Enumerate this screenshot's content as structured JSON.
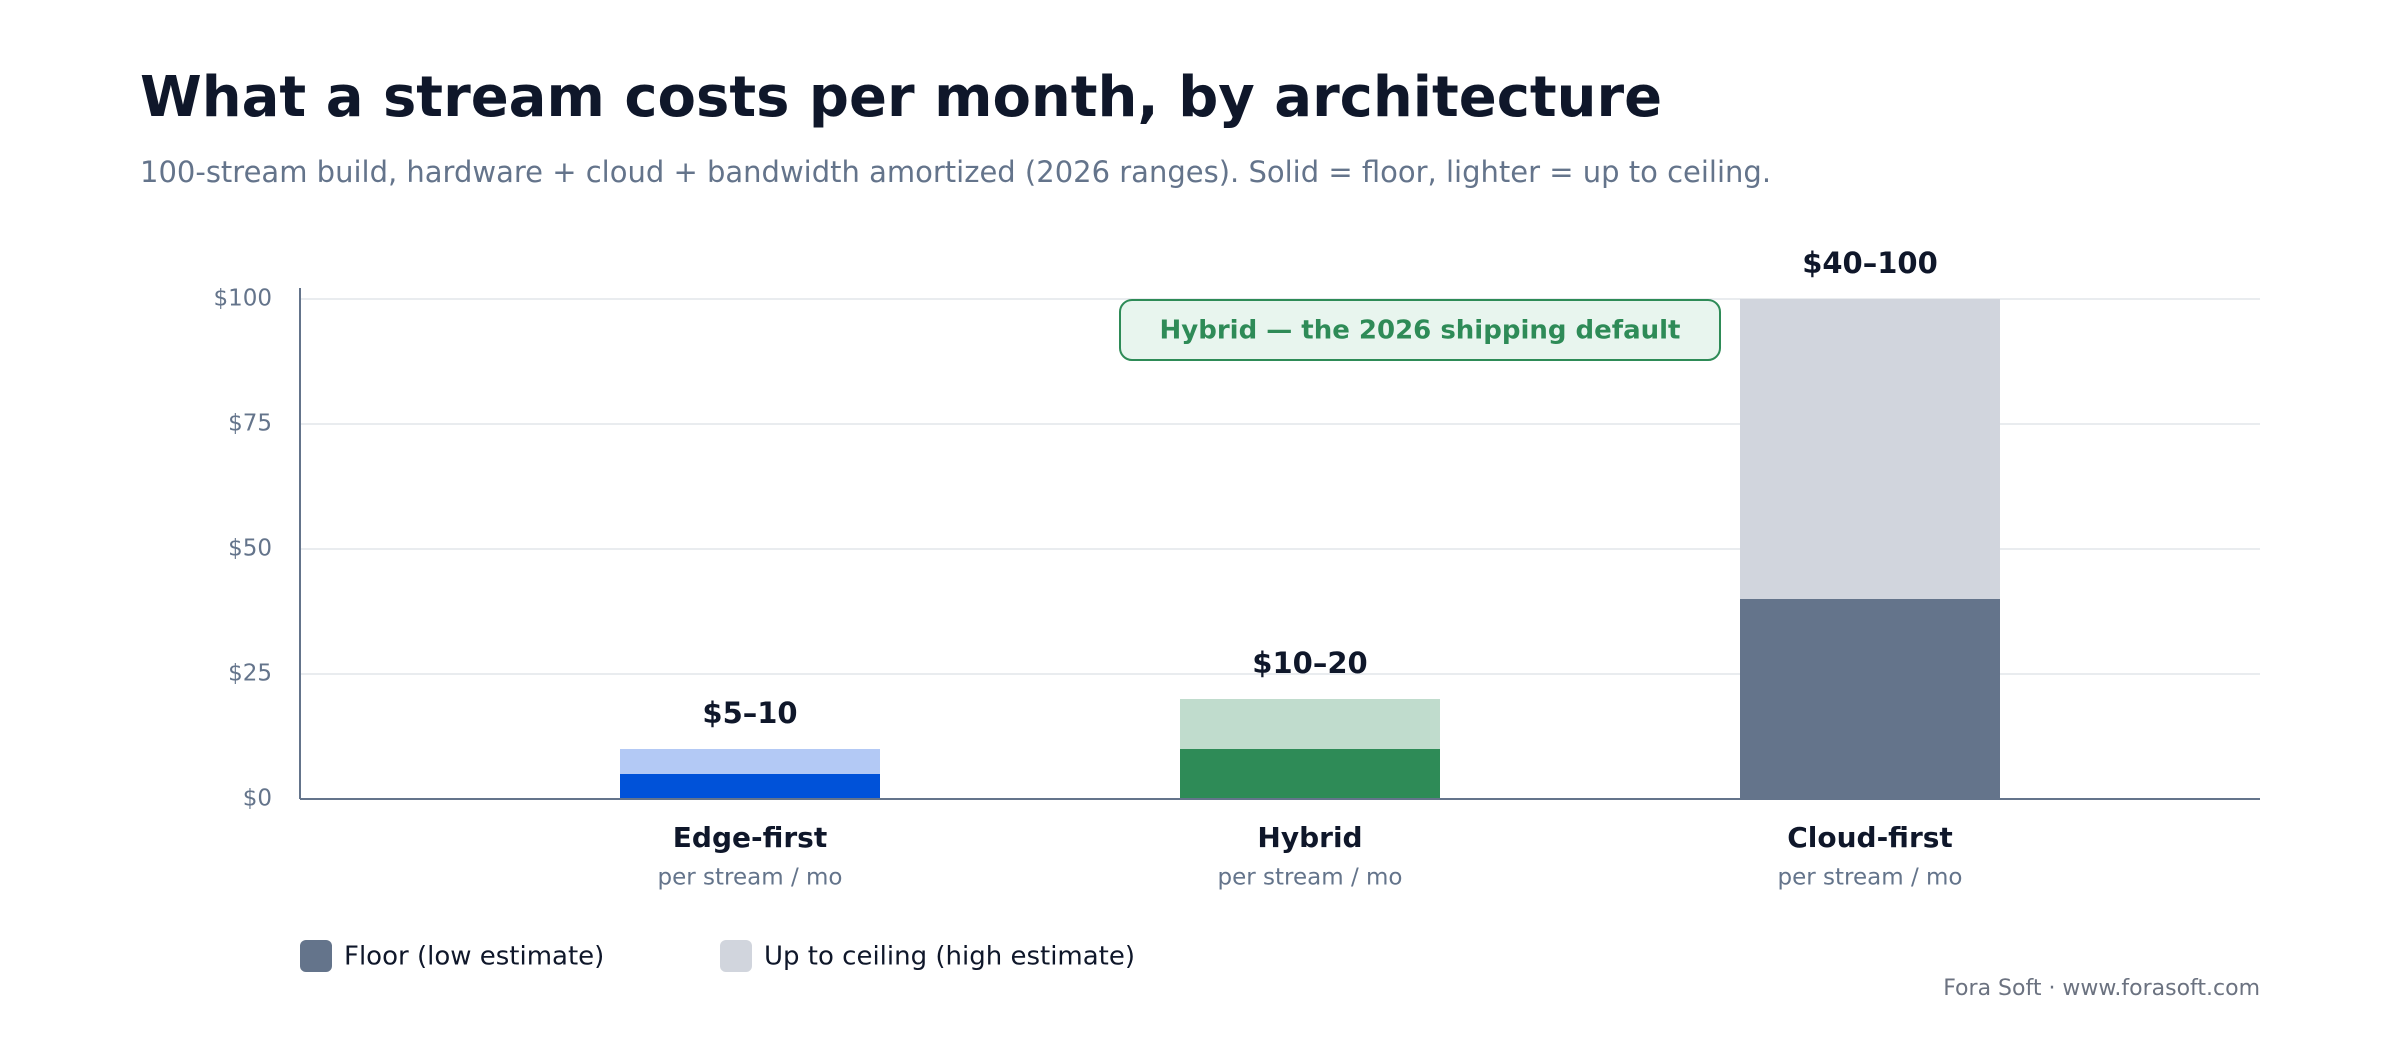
{
  "chart_data": {
    "type": "stacked_bar",
    "title": "What a stream costs per month, by architecture",
    "subtitle": "100-stream build, hardware + cloud + bandwidth amortized (2026 ranges). Solid = floor, lighter = up to ceiling.",
    "categories": [
      "Edge-first",
      "Hybrid",
      "Cloud-first"
    ],
    "category_subtitles": [
      "per stream / mo",
      "per stream / mo",
      "per stream / mo"
    ],
    "series": [
      {
        "name": "Floor (low estimate)",
        "color": "#64748b",
        "colors": [
          "#0052d9",
          "#2e8b57",
          "#64748b"
        ],
        "values": [
          5,
          10,
          40
        ]
      },
      {
        "name": "Up to ceiling (high estimate)",
        "color": "#d1d5dd",
        "colors": [
          "#b3c9f5",
          "#c0dccd",
          "#d1d5dd"
        ],
        "values": [
          5,
          10,
          60
        ]
      }
    ],
    "value_labels": [
      "$5–10",
      "$10–20",
      "$40–100"
    ],
    "ylim": [
      0,
      100
    ],
    "yticks": [
      {
        "value": 0,
        "label": "$0"
      },
      {
        "value": 25,
        "label": "$25"
      },
      {
        "value": 50,
        "label": "$50"
      },
      {
        "value": 75,
        "label": "$75"
      },
      {
        "value": 100,
        "label": "$100"
      }
    ],
    "grid": true,
    "annotation": "Hybrid — the 2026 shipping default",
    "source": "Fora Soft · www.forasoft.com"
  }
}
